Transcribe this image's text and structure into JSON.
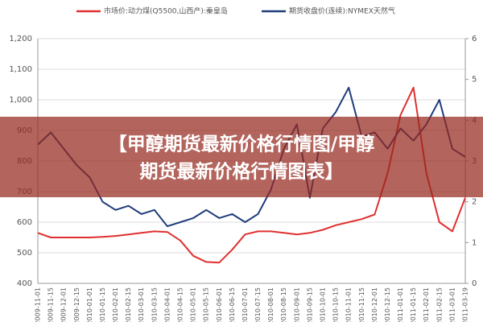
{
  "chart_data": {
    "type": "line",
    "categories": [
      "2009-11-01",
      "2009-11-15",
      "2009-12-01",
      "2009-12-15",
      "2010-01-01",
      "2010-01-15",
      "2010-02-01",
      "2010-02-15",
      "2010-03-01",
      "2010-03-15",
      "2010-04-01",
      "2010-04-15",
      "2010-05-01",
      "2010-05-15",
      "2010-06-01",
      "2010-06-15",
      "2010-07-01",
      "2010-07-15",
      "2010-08-01",
      "2010-08-15",
      "2010-09-01",
      "2010-09-15",
      "2010-10-01",
      "2010-10-15",
      "2010-11-01",
      "2010-11-15",
      "2010-12-01",
      "2010-12-15",
      "2011-01-01",
      "2011-01-15",
      "2011-02-01",
      "2011-02-15",
      "2011-03-01",
      "2011-03-19"
    ],
    "series": [
      {
        "name": "市场价:动力煤(Q5500,山西产):秦皇岛",
        "color": "#e03030",
        "values": [
          565,
          550,
          550,
          550,
          550,
          552,
          555,
          560,
          565,
          570,
          568,
          540,
          490,
          470,
          468,
          510,
          560,
          570,
          570,
          565,
          560,
          565,
          575,
          590,
          600,
          610,
          625,
          760,
          950,
          1040,
          760,
          600,
          570,
          680
        ]
      },
      {
        "name": "期货收盘价(连续):NYMEX天然气",
        "color": "#1f3d7a",
        "axis": "y2",
        "values": [
          3.4,
          3.7,
          3.3,
          2.9,
          2.6,
          2.0,
          1.8,
          1.9,
          1.7,
          1.8,
          1.4,
          1.5,
          1.6,
          1.8,
          1.6,
          1.7,
          1.5,
          1.7,
          2.3,
          3.3,
          3.9,
          2.1,
          3.8,
          4.2,
          4.8,
          3.6,
          3.7,
          3.3,
          3.8,
          3.5,
          3.9,
          4.5,
          3.3,
          3.1
        ]
      }
    ],
    "ylim": [
      400,
      1200
    ],
    "yticks": [
      400,
      500,
      600,
      700,
      800,
      900,
      {
        "value": 1000,
        "label": "1,000"
      },
      {
        "value": 1100,
        "label": "1,100"
      },
      {
        "value": 1200,
        "label": "1,200"
      }
    ],
    "y2lim": [
      0,
      6
    ],
    "y2ticks": [
      0,
      1,
      2,
      3,
      4,
      5,
      6
    ],
    "grid": true
  },
  "banner": {
    "lines": [
      "【甲醇期货最新价格行情图/甲醇",
      "期货最新价格行情图表】"
    ]
  }
}
